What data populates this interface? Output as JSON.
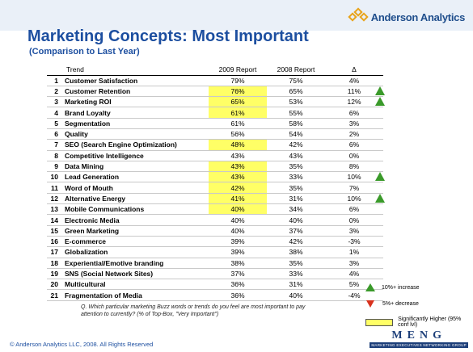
{
  "brand": "Anderson Analytics",
  "title": "Marketing Concepts: Most Important",
  "subtitle": "(Comparison to Last Year)",
  "columns": {
    "trend": "Trend",
    "y2009": "2009 Report",
    "y2008": "2008 Report",
    "delta": "Δ"
  },
  "rows": [
    {
      "rank": "1",
      "trend": "Customer Satisfaction",
      "y2009": "79%",
      "y2008": "75%",
      "delta": "4%",
      "hl": false,
      "up": false
    },
    {
      "rank": "2",
      "trend": "Customer Retention",
      "y2009": "76%",
      "y2008": "65%",
      "delta": "11%",
      "hl": true,
      "up": true
    },
    {
      "rank": "3",
      "trend": "Marketing ROI",
      "y2009": "65%",
      "y2008": "53%",
      "delta": "12%",
      "hl": true,
      "up": true
    },
    {
      "rank": "4",
      "trend": "Brand Loyalty",
      "y2009": "61%",
      "y2008": "55%",
      "delta": "6%",
      "hl": true,
      "up": false
    },
    {
      "rank": "5",
      "trend": "Segmentation",
      "y2009": "61%",
      "y2008": "58%",
      "delta": "3%",
      "hl": false,
      "up": false
    },
    {
      "rank": "6",
      "trend": "Quality",
      "y2009": "56%",
      "y2008": "54%",
      "delta": "2%",
      "hl": false,
      "up": false
    },
    {
      "rank": "7",
      "trend": "SEO (Search Engine Optimization)",
      "y2009": "48%",
      "y2008": "42%",
      "delta": "6%",
      "hl": true,
      "up": false
    },
    {
      "rank": "8",
      "trend": "Competitive Intelligence",
      "y2009": "43%",
      "y2008": "43%",
      "delta": "0%",
      "hl": false,
      "up": false
    },
    {
      "rank": "9",
      "trend": "Data Mining",
      "y2009": "43%",
      "y2008": "35%",
      "delta": "8%",
      "hl": true,
      "up": false
    },
    {
      "rank": "10",
      "trend": "Lead Generation",
      "y2009": "43%",
      "y2008": "33%",
      "delta": "10%",
      "hl": true,
      "up": true
    },
    {
      "rank": "11",
      "trend": "Word of Mouth",
      "y2009": "42%",
      "y2008": "35%",
      "delta": "7%",
      "hl": true,
      "up": false
    },
    {
      "rank": "12",
      "trend": "Alternative Energy",
      "y2009": "41%",
      "y2008": "31%",
      "delta": "10%",
      "hl": true,
      "up": true
    },
    {
      "rank": "13",
      "trend": "Mobile Communications",
      "y2009": "40%",
      "y2008": "34%",
      "delta": "6%",
      "hl": true,
      "up": false
    },
    {
      "rank": "14",
      "trend": "Electronic Media",
      "y2009": "40%",
      "y2008": "40%",
      "delta": "0%",
      "hl": false,
      "up": false
    },
    {
      "rank": "15",
      "trend": "Green Marketing",
      "y2009": "40%",
      "y2008": "37%",
      "delta": "3%",
      "hl": false,
      "up": false
    },
    {
      "rank": "16",
      "trend": "E-commerce",
      "y2009": "39%",
      "y2008": "42%",
      "delta": "-3%",
      "hl": false,
      "up": false
    },
    {
      "rank": "17",
      "trend": "Globalization",
      "y2009": "39%",
      "y2008": "38%",
      "delta": "1%",
      "hl": false,
      "up": false
    },
    {
      "rank": "18",
      "trend": "Experiential/Emotive branding",
      "y2009": "38%",
      "y2008": "35%",
      "delta": "3%",
      "hl": false,
      "up": false
    },
    {
      "rank": "19",
      "trend": "SNS (Social Network Sites)",
      "y2009": "37%",
      "y2008": "33%",
      "delta": "4%",
      "hl": false,
      "up": false
    },
    {
      "rank": "20",
      "trend": "Multicultural",
      "y2009": "36%",
      "y2008": "31%",
      "delta": "5%",
      "hl": false,
      "up": false
    },
    {
      "rank": "21",
      "trend": "Fragmentation of Media",
      "y2009": "36%",
      "y2008": "40%",
      "delta": "-4%",
      "hl": false,
      "up": false
    }
  ],
  "note": "Q. Which particular marketing Buzz words or trends do you feel are most important to pay attention to currently? (% of Top-Box, \"Very Important\")",
  "legend": {
    "up": "10%+ increase",
    "down": "5%+ decrease",
    "highlight": "Significantly Higher (95% conf lvl)"
  },
  "colors": {
    "title": "#1d4fa0",
    "highlight": "#ffff66",
    "increase": "#3a9a2a",
    "decrease": "#d8321e"
  },
  "footer": "© Anderson Analytics LLC, 2008. All Rights Reserved",
  "meng": {
    "letters": "MENG",
    "tagline": "MARKETING EXECUTIVES NETWORKING GROUP"
  }
}
